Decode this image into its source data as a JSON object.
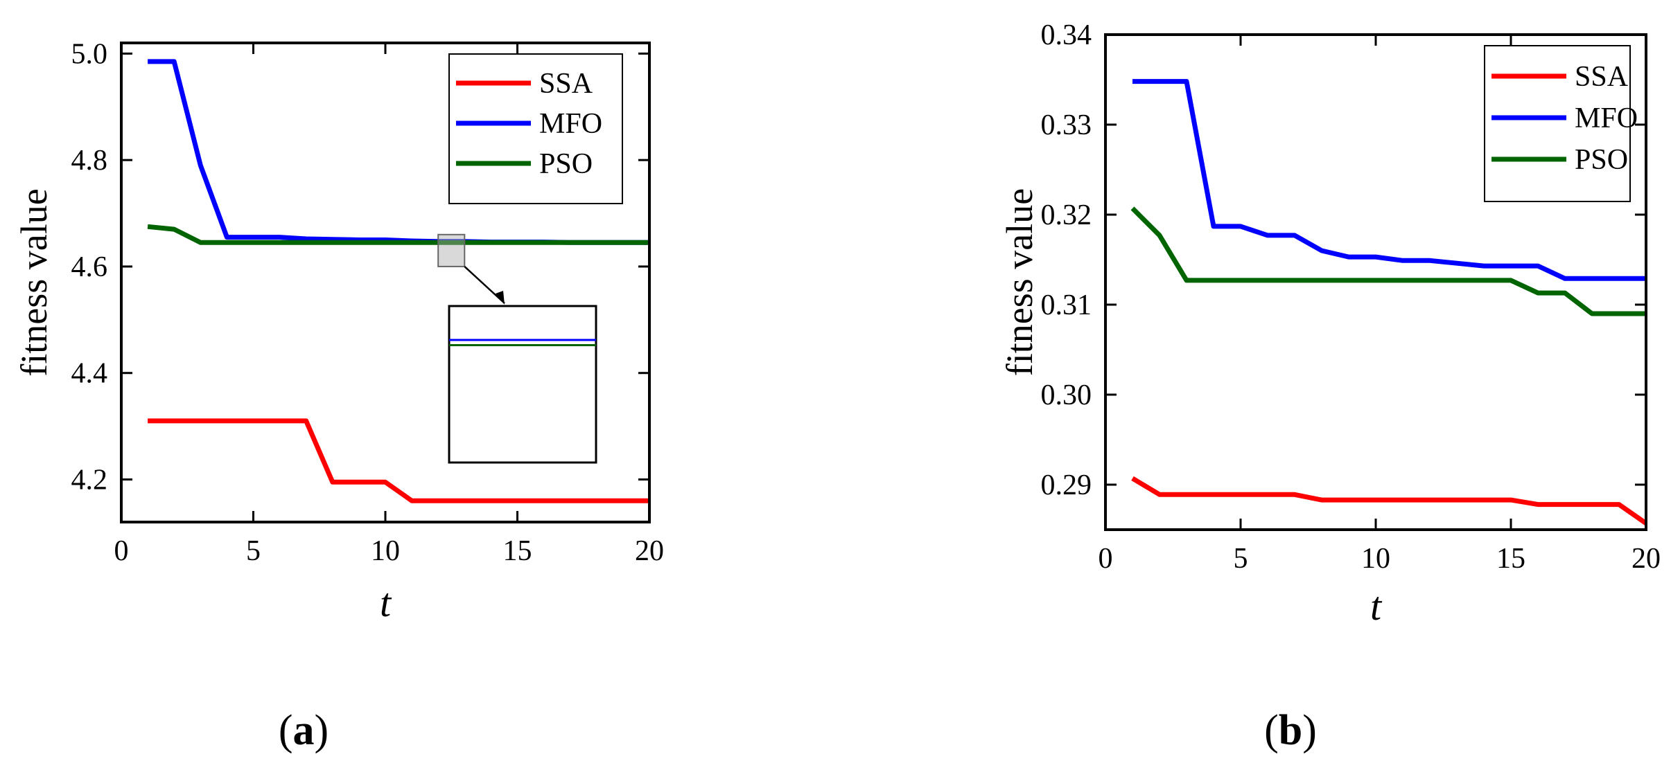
{
  "chart_data": [
    {
      "type": "line",
      "xlabel": "t",
      "ylabel": "fitness value",
      "xlim": [
        0,
        20
      ],
      "ylim": [
        4.12,
        5.02
      ],
      "xticks": [
        0,
        5,
        10,
        15,
        20
      ],
      "yticks": [
        4.2,
        4.4,
        4.6,
        4.8,
        5.0
      ],
      "xtick_labels": [
        "0",
        "5",
        "10",
        "15",
        "20"
      ],
      "ytick_labels": [
        "4.2",
        "4.4",
        "4.6",
        "4.8",
        "5.0"
      ],
      "grid": false,
      "legend_position": "top-right",
      "panel_label": "a",
      "inset": {
        "x_range": [
          12,
          13
        ],
        "y_range": [
          4.6,
          4.66
        ],
        "series": [
          "MFO",
          "PSO"
        ]
      },
      "x": [
        1,
        2,
        3,
        4,
        5,
        6,
        7,
        8,
        9,
        10,
        11,
        12,
        13,
        14,
        15,
        16,
        17,
        18,
        19,
        20
      ],
      "series": [
        {
          "name": "SSA",
          "color": "#ff0000",
          "values": [
            4.31,
            4.31,
            4.31,
            4.31,
            4.31,
            4.31,
            4.31,
            4.195,
            4.195,
            4.195,
            4.16,
            4.16,
            4.16,
            4.16,
            4.16,
            4.16,
            4.16,
            4.16,
            4.16,
            4.16
          ]
        },
        {
          "name": "MFO",
          "color": "#0000ff",
          "values": [
            4.985,
            4.985,
            4.79,
            4.655,
            4.655,
            4.655,
            4.652,
            4.651,
            4.65,
            4.65,
            4.648,
            4.647,
            4.647,
            4.646,
            4.646,
            4.646,
            4.645,
            4.645,
            4.645,
            4.645
          ]
        },
        {
          "name": "PSO",
          "color": "#006400",
          "values": [
            4.675,
            4.67,
            4.645,
            4.645,
            4.645,
            4.645,
            4.645,
            4.645,
            4.645,
            4.645,
            4.645,
            4.645,
            4.645,
            4.645,
            4.645,
            4.645,
            4.645,
            4.645,
            4.645,
            4.645
          ]
        }
      ]
    },
    {
      "type": "line",
      "xlabel": "t",
      "ylabel": "fitness value",
      "xlim": [
        0,
        20
      ],
      "ylim": [
        0.285,
        0.34
      ],
      "xticks": [
        0,
        5,
        10,
        15,
        20
      ],
      "yticks": [
        0.29,
        0.3,
        0.31,
        0.32,
        0.33,
        0.34
      ],
      "xtick_labels": [
        "0",
        "5",
        "10",
        "15",
        "20"
      ],
      "ytick_labels": [
        "0.29",
        "0.30",
        "0.31",
        "0.32",
        "0.33",
        "0.34"
      ],
      "grid": false,
      "legend_position": "top-right",
      "panel_label": "b",
      "x": [
        1,
        2,
        3,
        4,
        5,
        6,
        7,
        8,
        9,
        10,
        11,
        12,
        13,
        14,
        15,
        16,
        17,
        18,
        19,
        20
      ],
      "series": [
        {
          "name": "SSA",
          "color": "#ff0000",
          "values": [
            0.2907,
            0.2889,
            0.2889,
            0.2889,
            0.2889,
            0.2889,
            0.2889,
            0.2883,
            0.2883,
            0.2883,
            0.2883,
            0.2883,
            0.2883,
            0.2883,
            0.2883,
            0.2878,
            0.2878,
            0.2878,
            0.2878,
            0.2857
          ]
        },
        {
          "name": "MFO",
          "color": "#0000ff",
          "values": [
            0.3348,
            0.3348,
            0.3348,
            0.3187,
            0.3187,
            0.3177,
            0.3177,
            0.316,
            0.3153,
            0.3153,
            0.3149,
            0.3149,
            0.3146,
            0.3143,
            0.3143,
            0.3143,
            0.3129,
            0.3129,
            0.3129,
            0.3129
          ]
        },
        {
          "name": "PSO",
          "color": "#006400",
          "values": [
            0.3207,
            0.3177,
            0.3127,
            0.3127,
            0.3127,
            0.3127,
            0.3127,
            0.3127,
            0.3127,
            0.3127,
            0.3127,
            0.3127,
            0.3127,
            0.3127,
            0.3127,
            0.3113,
            0.3113,
            0.309,
            0.309,
            0.309
          ]
        }
      ]
    }
  ]
}
